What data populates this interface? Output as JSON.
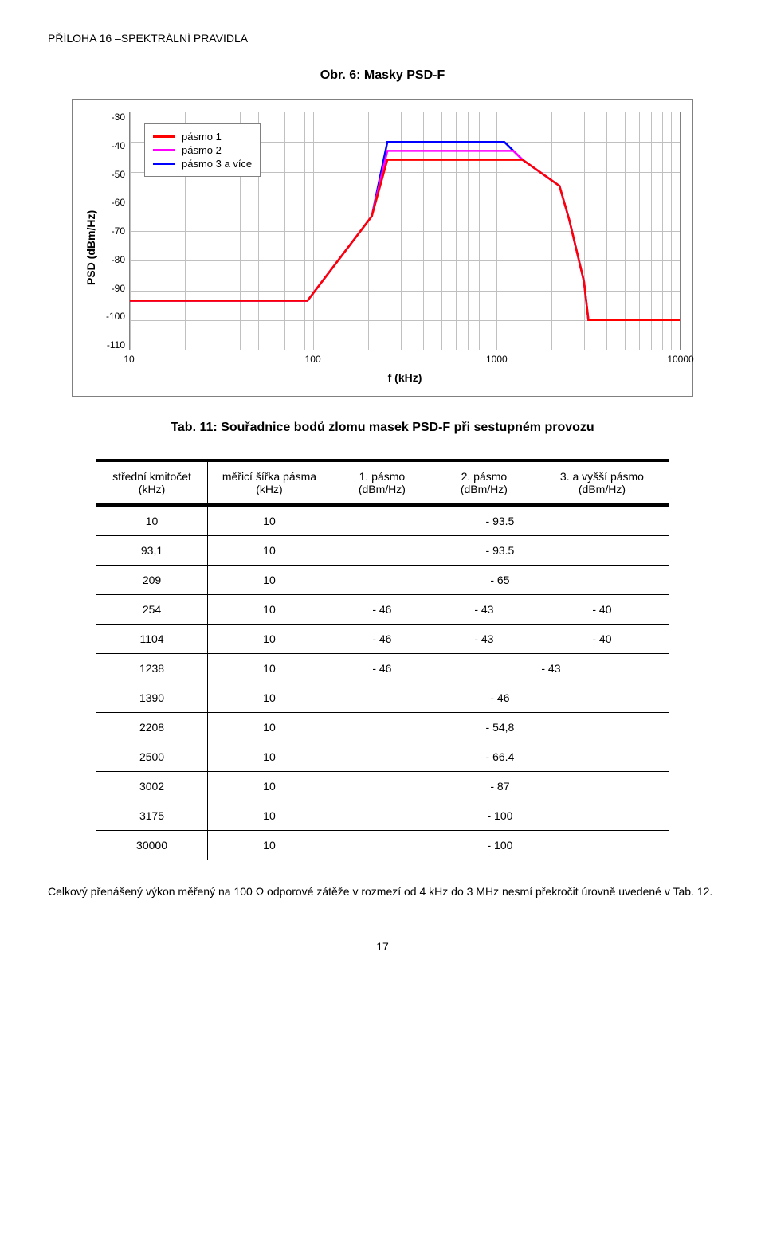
{
  "header": "PŘÍLOHA 16 –SPEKTRÁLNÍ PRAVIDLA",
  "figure_title": "Obr. 6: Masky PSD-F",
  "chart": {
    "type": "line",
    "y_label": "PSD (dBm/Hz)",
    "x_label": "f (kHz)",
    "ylim": [
      -110,
      -30
    ],
    "ytick_step": 10,
    "y_ticks": [
      "-30",
      "-40",
      "-50",
      "-60",
      "-70",
      "-80",
      "-90",
      "-100",
      "-110"
    ],
    "xlim": [
      10,
      10000
    ],
    "x_scale": "log",
    "x_ticks": [
      {
        "label": "10",
        "pos": 0
      },
      {
        "label": "100",
        "pos": 33.33
      },
      {
        "label": "1000",
        "pos": 66.67
      },
      {
        "label": "10000",
        "pos": 100
      }
    ],
    "background_color": "#ffffff",
    "grid_color": "#c0c0c0",
    "border_color": "#808080",
    "line_width": 2.5,
    "legend": {
      "items": [
        {
          "label": "pásmo 1",
          "color": "#ff0000"
        },
        {
          "label": "pásmo 2",
          "color": "#ff00ff"
        },
        {
          "label": "pásmo 3 a více",
          "color": "#0000ff"
        }
      ]
    },
    "series": [
      {
        "name": "pásmo 3 a více",
        "color": "#0000ff",
        "points": [
          {
            "x": 10,
            "y": -93.5
          },
          {
            "x": 93.1,
            "y": -93.5
          },
          {
            "x": 209,
            "y": -65
          },
          {
            "x": 254,
            "y": -40
          },
          {
            "x": 1104,
            "y": -40
          },
          {
            "x": 1238,
            "y": -43
          },
          {
            "x": 1390,
            "y": -46
          },
          {
            "x": 2208,
            "y": -54.8
          },
          {
            "x": 2500,
            "y": -66.4
          },
          {
            "x": 3002,
            "y": -87
          },
          {
            "x": 3175,
            "y": -100
          },
          {
            "x": 10000,
            "y": -100
          }
        ]
      },
      {
        "name": "pásmo 2",
        "color": "#ff00ff",
        "points": [
          {
            "x": 10,
            "y": -93.5
          },
          {
            "x": 93.1,
            "y": -93.5
          },
          {
            "x": 209,
            "y": -65
          },
          {
            "x": 254,
            "y": -43
          },
          {
            "x": 1104,
            "y": -43
          },
          {
            "x": 1238,
            "y": -43
          },
          {
            "x": 1390,
            "y": -46
          },
          {
            "x": 2208,
            "y": -54.8
          },
          {
            "x": 2500,
            "y": -66.4
          },
          {
            "x": 3002,
            "y": -87
          },
          {
            "x": 3175,
            "y": -100
          },
          {
            "x": 10000,
            "y": -100
          }
        ]
      },
      {
        "name": "pásmo 1",
        "color": "#ff0000",
        "points": [
          {
            "x": 10,
            "y": -93.5
          },
          {
            "x": 93.1,
            "y": -93.5
          },
          {
            "x": 209,
            "y": -65
          },
          {
            "x": 254,
            "y": -46
          },
          {
            "x": 1104,
            "y": -46
          },
          {
            "x": 1238,
            "y": -46
          },
          {
            "x": 1390,
            "y": -46
          },
          {
            "x": 2208,
            "y": -54.8
          },
          {
            "x": 2500,
            "y": -66.4
          },
          {
            "x": 3002,
            "y": -87
          },
          {
            "x": 3175,
            "y": -100
          },
          {
            "x": 10000,
            "y": -100
          }
        ]
      }
    ]
  },
  "table_title": "Tab. 11: Souřadnice bodů zlomu masek PSD-F při sestupném provozu",
  "table": {
    "columns": [
      "střední kmitočet (kHz)",
      "měřicí šířka pásma (kHz)",
      "1. pásmo (dBm/Hz)",
      "2. pásmo (dBm/Hz)",
      "3. a vyšší pásmo (dBm/Hz)"
    ],
    "rows": [
      {
        "c0": "10",
        "c1": "10",
        "merge": {
          "span": 3,
          "val": "- 93.5"
        }
      },
      {
        "c0": "93,1",
        "c1": "10",
        "merge": {
          "span": 3,
          "val": "- 93.5"
        }
      },
      {
        "c0": "209",
        "c1": "10",
        "merge": {
          "span": 3,
          "val": "- 65"
        }
      },
      {
        "c0": "254",
        "c1": "10",
        "c2": "- 46",
        "c3": "- 43",
        "c4": "- 40"
      },
      {
        "c0": "1104",
        "c1": "10",
        "c2": "- 46",
        "c3": "- 43",
        "c4": "- 40"
      },
      {
        "c0": "1238",
        "c1": "10",
        "c2": "- 46",
        "merge34": {
          "span": 2,
          "val": "- 43"
        }
      },
      {
        "c0": "1390",
        "c1": "10",
        "merge": {
          "span": 3,
          "val": "- 46"
        }
      },
      {
        "c0": "2208",
        "c1": "10",
        "merge": {
          "span": 3,
          "val": "- 54,8"
        }
      },
      {
        "c0": "2500",
        "c1": "10",
        "merge": {
          "span": 3,
          "val": "- 66.4"
        }
      },
      {
        "c0": "3002",
        "c1": "10",
        "merge": {
          "span": 3,
          "val": "- 87"
        }
      },
      {
        "c0": "3175",
        "c1": "10",
        "merge": {
          "span": 3,
          "val": "- 100"
        }
      },
      {
        "c0": "30000",
        "c1": "10",
        "merge": {
          "span": 3,
          "val": "- 100"
        }
      }
    ]
  },
  "footer_text": "Celkový přenášený výkon měřený na 100 Ω odporové zátěže v rozmezí od 4 kHz do 3 MHz nesmí překročit úrovně uvedené v Tab. 12.",
  "page_number": "17"
}
